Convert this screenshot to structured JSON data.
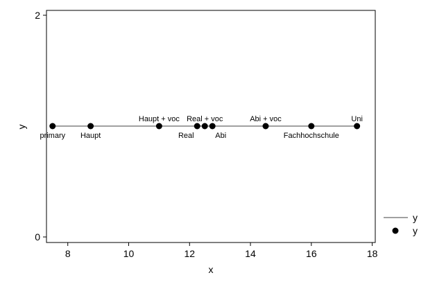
{
  "chart_data": {
    "type": "scatter",
    "title": "",
    "xlabel": "x",
    "ylabel": "y",
    "xlim": [
      7.3,
      18.1
    ],
    "ylim": [
      0,
      2
    ],
    "x_ticks": [
      8,
      10,
      12,
      14,
      16,
      18
    ],
    "y_ticks": [
      0,
      2
    ],
    "grid": false,
    "legend_position": "right",
    "legend": [
      {
        "name": "y",
        "marker": "line"
      },
      {
        "name": "y",
        "marker": "dot"
      }
    ],
    "series": [
      {
        "name": "y",
        "kind": "line",
        "color": "#808080"
      },
      {
        "name": "y",
        "kind": "dot",
        "color": "#000000"
      }
    ],
    "points": [
      {
        "x": 7.5,
        "y": 1,
        "label": "primary",
        "label_pos": "below"
      },
      {
        "x": 8.75,
        "y": 1,
        "label": "Haupt",
        "label_pos": "below"
      },
      {
        "x": 11.0,
        "y": 1,
        "label": "Haupt + voc",
        "label_pos": "above"
      },
      {
        "x": 12.25,
        "y": 1,
        "label": "Real",
        "label_pos": "below-left"
      },
      {
        "x": 12.5,
        "y": 1,
        "label": "Real + voc",
        "label_pos": "above"
      },
      {
        "x": 12.75,
        "y": 1,
        "label": "Abi",
        "label_pos": "below-right"
      },
      {
        "x": 14.5,
        "y": 1,
        "label": "Abi + voc",
        "label_pos": "above"
      },
      {
        "x": 16.0,
        "y": 1,
        "label": "Fachhochschule",
        "label_pos": "below"
      },
      {
        "x": 17.5,
        "y": 1,
        "label": "Uni",
        "label_pos": "above"
      }
    ]
  }
}
